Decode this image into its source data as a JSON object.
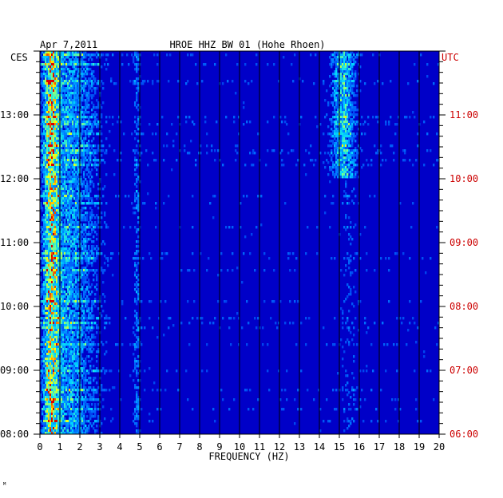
{
  "chart_data": {
    "type": "heatmap",
    "date": "Apr 7,2011",
    "title": "HROE HHZ BW 01 (Hohe Rhoen)",
    "left_zone": "CES",
    "right_zone": "UTC",
    "xlabel": "FREQUENCY (HZ)",
    "xlim": [
      0,
      20
    ],
    "x_ticks": [
      "0",
      "1",
      "2",
      "3",
      "4",
      "5",
      "6",
      "7",
      "8",
      "9",
      "10",
      "11",
      "12",
      "13",
      "14",
      "15",
      "16",
      "17",
      "18",
      "19",
      "20"
    ],
    "left_time_labels": [
      {
        "label": "13:00",
        "hour": 13
      },
      {
        "label": "12:00",
        "hour": 12
      },
      {
        "label": "11:00",
        "hour": 11
      },
      {
        "label": "10:00",
        "hour": 10
      },
      {
        "label": "09:00",
        "hour": 9
      },
      {
        "label": "08:00",
        "hour": 8
      }
    ],
    "right_time_labels": [
      {
        "label": "11:00",
        "hour": 11
      },
      {
        "label": "10:00",
        "hour": 10
      },
      {
        "label": "09:00",
        "hour": 9
      },
      {
        "label": "08:00",
        "hour": 8
      },
      {
        "label": "07:00",
        "hour": 7
      },
      {
        "label": "06:00",
        "hour": 6
      }
    ],
    "ylim_ces_hours": [
      8,
      14
    ],
    "colors": {
      "background": "#0000c8",
      "grid": "#000000",
      "utc_label": "#cc0000"
    }
  },
  "corner_mark": "ᴹ"
}
